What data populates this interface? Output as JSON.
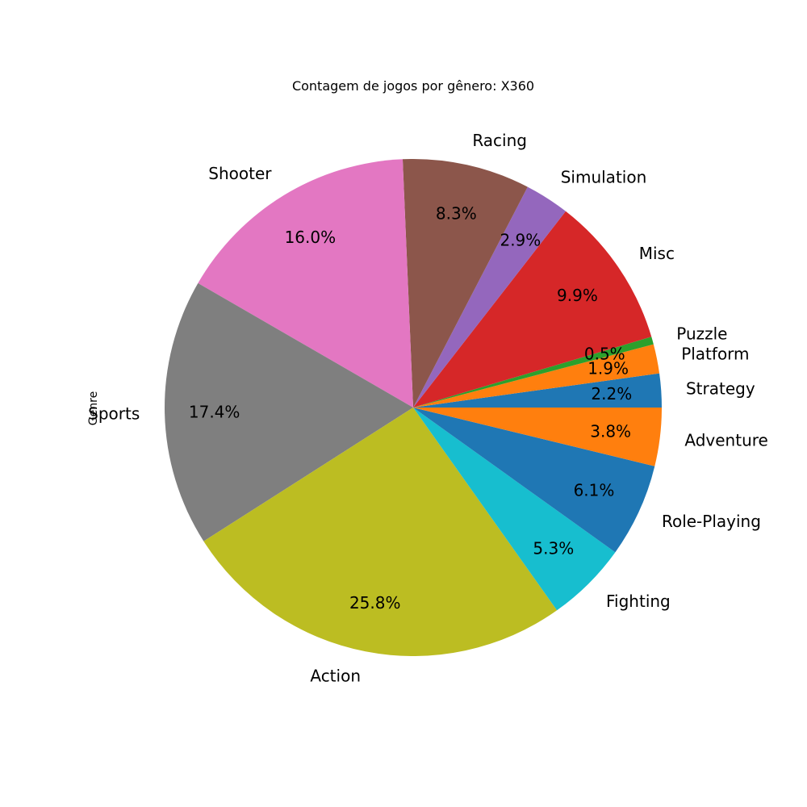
{
  "chart_data": {
    "type": "pie",
    "title": "Contagem de jogos por gênero: X360",
    "ylabel": "Genre",
    "start_angle_deg": 0,
    "direction": "counterclockwise",
    "slices": [
      {
        "label": "Strategy",
        "value": 2.2,
        "pct_label": "2.2%",
        "color": "#1f77b4"
      },
      {
        "label": "Platform",
        "value": 1.9,
        "pct_label": "1.9%",
        "color": "#ff7f0e"
      },
      {
        "label": "Puzzle",
        "value": 0.5,
        "pct_label": "0.5%",
        "color": "#2ca02c"
      },
      {
        "label": "Misc",
        "value": 9.9,
        "pct_label": "9.9%",
        "color": "#d62728"
      },
      {
        "label": "Simulation",
        "value": 2.9,
        "pct_label": "2.9%",
        "color": "#9467bd"
      },
      {
        "label": "Racing",
        "value": 8.3,
        "pct_label": "8.3%",
        "color": "#8c564b"
      },
      {
        "label": "Shooter",
        "value": 16.0,
        "pct_label": "16.0%",
        "color": "#e377c2"
      },
      {
        "label": "Sports",
        "value": 17.4,
        "pct_label": "17.4%",
        "color": "#7f7f7f"
      },
      {
        "label": "Action",
        "value": 25.8,
        "pct_label": "25.8%",
        "color": "#bcbd22"
      },
      {
        "label": "Fighting",
        "value": 5.3,
        "pct_label": "5.3%",
        "color": "#17becf"
      },
      {
        "label": "Role-Playing",
        "value": 6.1,
        "pct_label": "6.1%",
        "color": "#1f77b4"
      },
      {
        "label": "Adventure",
        "value": 3.8,
        "pct_label": "3.8%",
        "color": "#ff7f0e"
      }
    ]
  }
}
